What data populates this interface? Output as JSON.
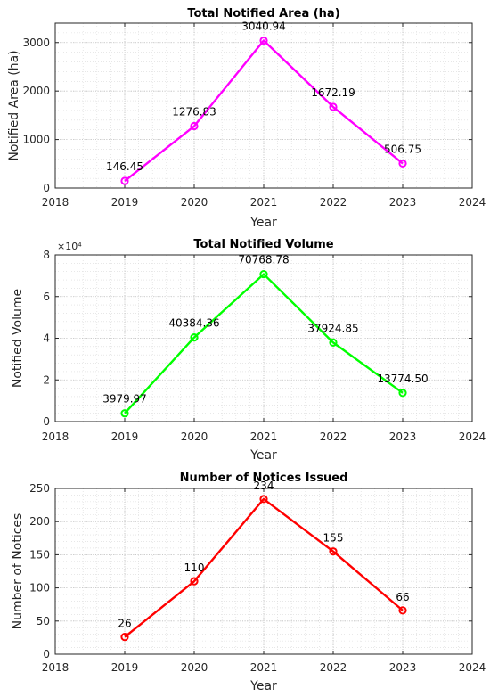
{
  "chart_data": [
    {
      "type": "line",
      "title": "Total Notified Area (ha)",
      "xlabel": "Year",
      "ylabel": "Notified Area (ha)",
      "xlim": [
        2018,
        2024
      ],
      "ylim": [
        0,
        3400
      ],
      "xticks": [
        "2018",
        "2019",
        "2020",
        "2021",
        "2022",
        "2023",
        "2024"
      ],
      "yticks": [
        "0",
        "1000",
        "2000",
        "3000"
      ],
      "ytick_values": [
        0,
        1000,
        2000,
        3000
      ],
      "y_multiplier": "",
      "grid": true,
      "minor_grid": true,
      "color": "#ff00ff",
      "x": [
        2019,
        2020,
        2021,
        2022,
        2023
      ],
      "values": [
        146.45,
        1276.83,
        3040.94,
        1672.19,
        506.75
      ],
      "labels": [
        "146.45",
        "1276.83",
        "3040.94",
        "1672.19",
        "506.75"
      ]
    },
    {
      "type": "line",
      "title": "Total Notified Volume",
      "xlabel": "Year",
      "ylabel": "Notified Volume",
      "xlim": [
        2018,
        2024
      ],
      "ylim": [
        0,
        80000
      ],
      "xticks": [
        "2018",
        "2019",
        "2020",
        "2021",
        "2022",
        "2023",
        "2024"
      ],
      "yticks": [
        "0",
        "2",
        "4",
        "6",
        "8"
      ],
      "ytick_values": [
        0,
        20000,
        40000,
        60000,
        80000
      ],
      "y_multiplier": "×10⁴",
      "grid": true,
      "minor_grid": true,
      "color": "#00ff00",
      "x": [
        2019,
        2020,
        2021,
        2022,
        2023
      ],
      "values": [
        3979.97,
        40384.36,
        70768.78,
        37924.85,
        13774.5
      ],
      "labels": [
        "3979.97",
        "40384.36",
        "70768.78",
        "37924.85",
        "13774.50"
      ]
    },
    {
      "type": "line",
      "title": "Number of Notices Issued",
      "xlabel": "Year",
      "ylabel": "Number of Notices",
      "xlim": [
        2018,
        2024
      ],
      "ylim": [
        0,
        250
      ],
      "xticks": [
        "2018",
        "2019",
        "2020",
        "2021",
        "2022",
        "2023",
        "2024"
      ],
      "yticks": [
        "0",
        "50",
        "100",
        "150",
        "200",
        "250"
      ],
      "ytick_values": [
        0,
        50,
        100,
        150,
        200,
        250
      ],
      "y_multiplier": "",
      "grid": true,
      "minor_grid": true,
      "color": "#ff0000",
      "x": [
        2019,
        2020,
        2021,
        2022,
        2023
      ],
      "values": [
        26,
        110,
        234,
        155,
        66
      ],
      "labels": [
        "26",
        "110",
        "234",
        "155",
        "66"
      ]
    }
  ]
}
